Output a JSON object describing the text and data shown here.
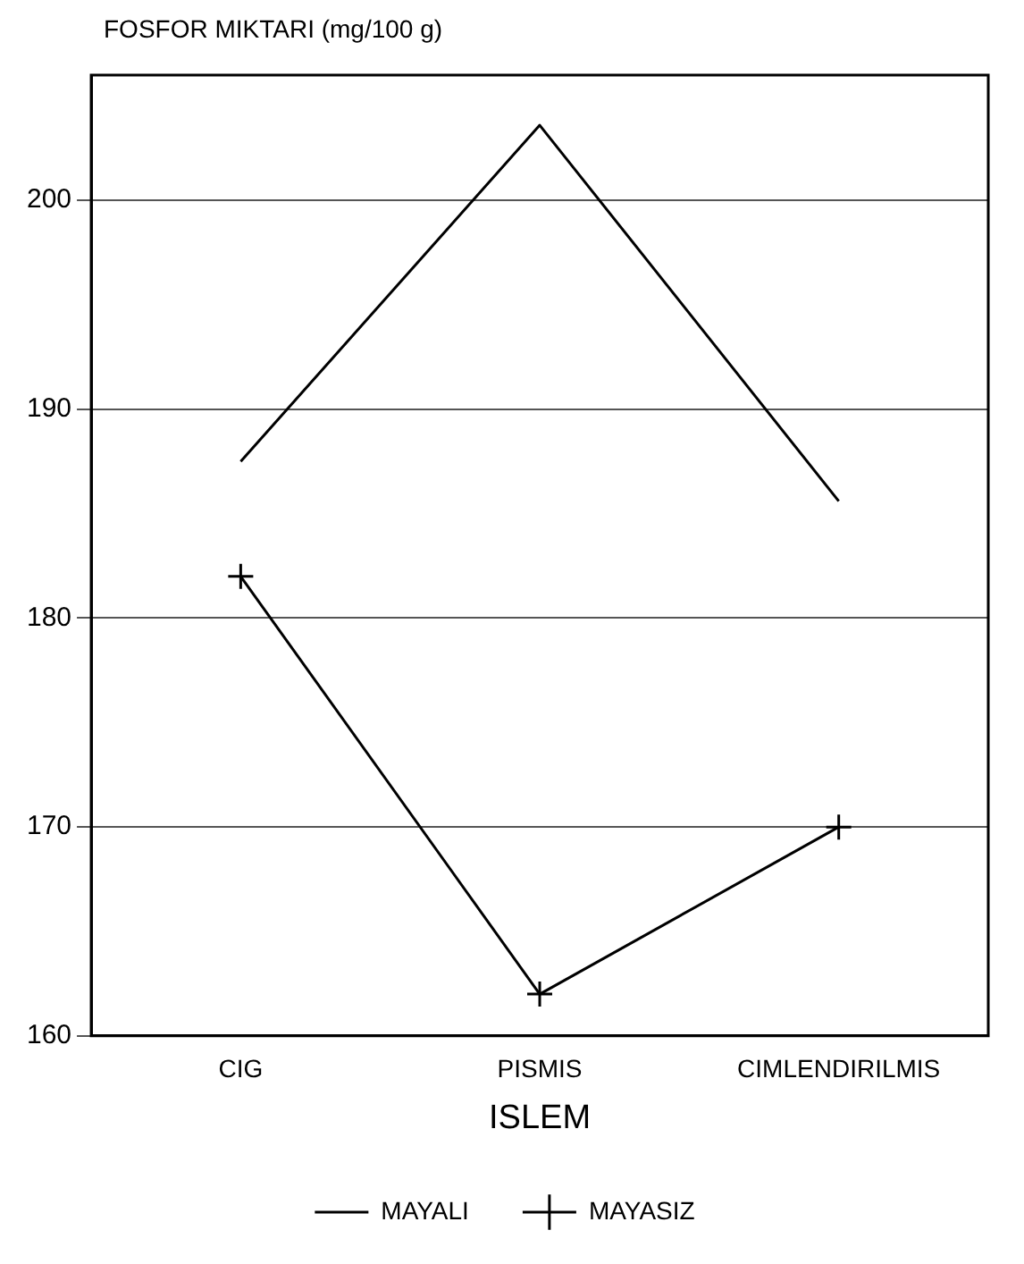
{
  "chart_data": {
    "type": "line",
    "ylabel": "FOSFOR MIKTARI (mg/100 g)",
    "xlabel": "ISLEM",
    "categories": [
      "CIG",
      "PISMIS",
      "CIMLENDIRILMIS"
    ],
    "series": [
      {
        "name": "MAYALI",
        "color": "#000000",
        "marker": "none",
        "values": [
          187.5,
          203.6,
          185.6
        ]
      },
      {
        "name": "MAYASIZ",
        "color": "#000000",
        "marker": "cross",
        "values": [
          182,
          162,
          170
        ]
      }
    ],
    "ylim": [
      160,
      206
    ],
    "yticks": [
      160,
      170,
      180,
      190,
      200
    ],
    "grid": "y",
    "legend": "bottom",
    "line_style": "solid"
  }
}
